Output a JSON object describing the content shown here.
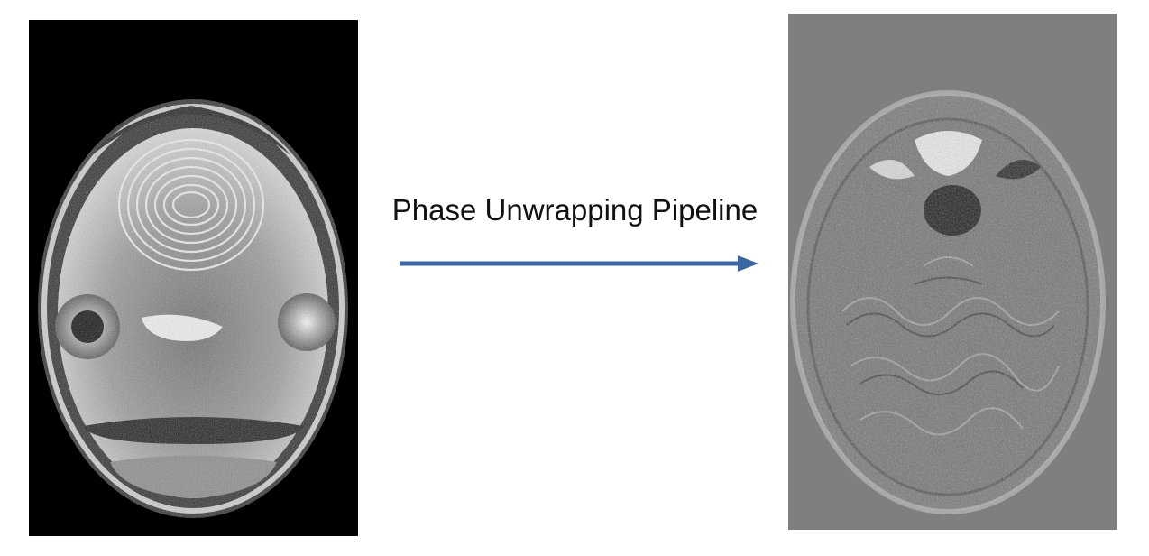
{
  "diagram": {
    "arrow_label": "Phase Unwrapping Pipeline",
    "arrow_color": "#3a66a6",
    "input_image": {
      "icon": "wrapped-phase-brain-mri-icon",
      "background": "#000000"
    },
    "output_image": {
      "icon": "unwrapped-phase-brain-mri-icon",
      "background": "#7f7f7f"
    }
  }
}
